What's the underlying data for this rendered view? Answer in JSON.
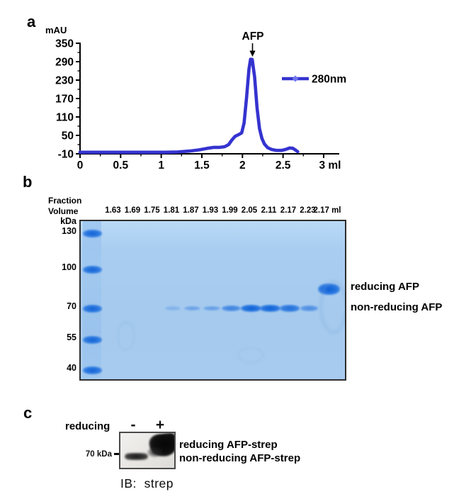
{
  "panels": {
    "a": "a",
    "b": "b",
    "c": "c"
  },
  "panel_a": {
    "y_axis_title": "mAU",
    "y_tick_labels": [
      "350",
      "290",
      "230",
      "170",
      "110",
      "50",
      "-10"
    ],
    "x_tick_labels": [
      "0",
      "0.5",
      "1",
      "1.5",
      "2",
      "2.5",
      "3 ml"
    ],
    "peak_annotation": "AFP",
    "legend_label": "280nm",
    "line_color": "#3533cf",
    "legend_marker_color": "#6f74ee"
  },
  "chart_data": {
    "type": "line",
    "title": "",
    "xlabel": "ml",
    "ylabel": "mAU",
    "xlim": [
      0,
      3.2
    ],
    "ylim": [
      -10,
      350
    ],
    "x_ticks": [
      0,
      0.5,
      1,
      1.5,
      2,
      2.5,
      3
    ],
    "y_ticks": [
      350,
      290,
      230,
      170,
      110,
      50,
      -10
    ],
    "grid": false,
    "legend_position": "right",
    "legend": [
      {
        "name": "280nm",
        "color": "#3533cf"
      }
    ],
    "annotations": [
      {
        "text": "AFP",
        "x": 2.11,
        "y": 320
      }
    ],
    "series": [
      {
        "name": "280nm",
        "points": [
          [
            0,
            -5
          ],
          [
            0.4,
            -5
          ],
          [
            0.8,
            -5
          ],
          [
            1.05,
            -5
          ],
          [
            1.2,
            -4
          ],
          [
            1.35,
            -1
          ],
          [
            1.47,
            3
          ],
          [
            1.57,
            8
          ],
          [
            1.65,
            11
          ],
          [
            1.72,
            11
          ],
          [
            1.78,
            13
          ],
          [
            1.83,
            20
          ],
          [
            1.87,
            35
          ],
          [
            1.91,
            47
          ],
          [
            1.95,
            52
          ],
          [
            1.99,
            58
          ],
          [
            2.02,
            90
          ],
          [
            2.05,
            170
          ],
          [
            2.08,
            265
          ],
          [
            2.1,
            298
          ],
          [
            2.12,
            297
          ],
          [
            2.15,
            240
          ],
          [
            2.18,
            140
          ],
          [
            2.21,
            72
          ],
          [
            2.24,
            40
          ],
          [
            2.27,
            22
          ],
          [
            2.31,
            10
          ],
          [
            2.36,
            4
          ],
          [
            2.42,
            1
          ],
          [
            2.48,
            1
          ],
          [
            2.53,
            4
          ],
          [
            2.58,
            9
          ],
          [
            2.62,
            8
          ],
          [
            2.66,
            1
          ],
          [
            2.68,
            -3
          ]
        ]
      }
    ]
  },
  "panel_b": {
    "header_line1": "Fraction",
    "header_line2": "Volume",
    "kda_unit": "kDa",
    "ladder_labels": [
      "130",
      "100",
      "70",
      "55",
      "40"
    ],
    "lanes": [
      {
        "label": "1.63",
        "intensity": 0,
        "position": "low"
      },
      {
        "label": "1.69",
        "intensity": 0,
        "position": "low"
      },
      {
        "label": "1.75",
        "intensity": 0,
        "position": "low"
      },
      {
        "label": "1.81",
        "intensity": 0.1,
        "position": "low"
      },
      {
        "label": "1.87",
        "intensity": 0.28,
        "position": "low"
      },
      {
        "label": "1.93",
        "intensity": 0.33,
        "position": "low"
      },
      {
        "label": "1.99",
        "intensity": 0.62,
        "position": "low"
      },
      {
        "label": "2.05",
        "intensity": 1,
        "position": "low"
      },
      {
        "label": "2.11",
        "intensity": 1,
        "position": "low"
      },
      {
        "label": "2.17",
        "intensity": 0.85,
        "position": "low"
      },
      {
        "label": "2.23",
        "intensity": 0.5,
        "position": "low"
      },
      {
        "label": "2.17 ml",
        "intensity": 1,
        "position": "high"
      }
    ],
    "right_labels": [
      "reducing AFP",
      "non-reducing AFP"
    ],
    "gel_bg_color": "#a9cdf0",
    "band_color": "#1d6fe0"
  },
  "panel_c": {
    "row_label": "reducing",
    "minus_label": "-",
    "plus_label": "+",
    "marker_label": "70 kDa",
    "right_labels": [
      "reducing AFP-strep",
      "non-reducing AFP-strep"
    ],
    "blot_caption": "IB:  strep"
  }
}
